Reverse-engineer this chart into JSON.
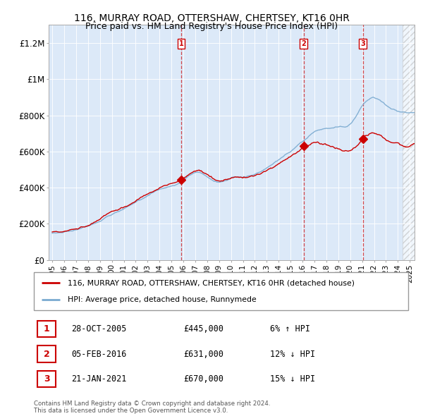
{
  "title": "116, MURRAY ROAD, OTTERSHAW, CHERTSEY, KT16 0HR",
  "subtitle": "Price paid vs. HM Land Registry's House Price Index (HPI)",
  "ylim": [
    0,
    1300000
  ],
  "xlim_start": 1994.7,
  "xlim_end": 2025.4,
  "ytick_labels": [
    "£0",
    "£200K",
    "£400K",
    "£600K",
    "£800K",
    "£1M",
    "£1.2M"
  ],
  "ytick_values": [
    0,
    200000,
    400000,
    600000,
    800000,
    1000000,
    1200000
  ],
  "background_color": "#ffffff",
  "plot_bg_color": "#dce9f8",
  "hatch_region_start": 2024.42,
  "sale_line_color": "#cc0000",
  "hpi_line_color": "#7aaad0",
  "legend_sale_label": "116, MURRAY ROAD, OTTERSHAW, CHERTSEY, KT16 0HR (detached house)",
  "legend_hpi_label": "HPI: Average price, detached house, Runnymede",
  "transactions": [
    {
      "label": "1",
      "date_year": 2005.83,
      "price": 445000,
      "note": "28-OCT-2005",
      "pct": "6% ↑ HPI"
    },
    {
      "label": "2",
      "date_year": 2016.09,
      "price": 631000,
      "note": "05-FEB-2016",
      "pct": "12% ↓ HPI"
    },
    {
      "label": "3",
      "date_year": 2021.06,
      "price": 670000,
      "note": "21-JAN-2021",
      "pct": "15% ↓ HPI"
    }
  ],
  "footnote": "Contains HM Land Registry data © Crown copyright and database right 2024.\nThis data is licensed under the Open Government Licence v3.0.",
  "xtick_years": [
    1995,
    1996,
    1997,
    1998,
    1999,
    2000,
    2001,
    2002,
    2003,
    2004,
    2005,
    2006,
    2007,
    2008,
    2009,
    2010,
    2011,
    2012,
    2013,
    2014,
    2015,
    2016,
    2017,
    2018,
    2019,
    2020,
    2021,
    2022,
    2023,
    2024,
    2025
  ]
}
